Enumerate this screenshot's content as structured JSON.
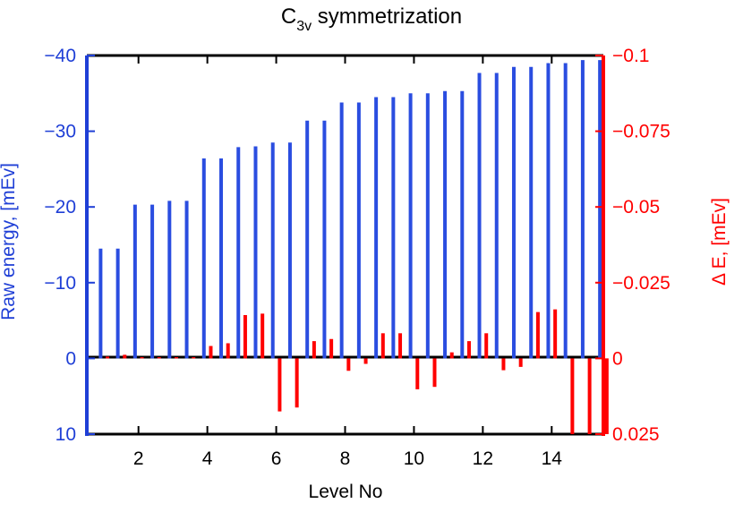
{
  "chart_data": {
    "type": "bar",
    "title": {
      "base": "C",
      "subscript": "3v",
      "rest": " symmetrization"
    },
    "xlabel": "Level No",
    "ylabel_left": "Raw energy, [mEv]",
    "ylabel_right": "Δ E, [mEv]",
    "xlim": [
      0.5,
      15.5
    ],
    "ylim_left": [
      10,
      -40
    ],
    "ylim_right": [
      0.025,
      -0.1
    ],
    "x_ticks": [
      2,
      4,
      6,
      8,
      10,
      12,
      14
    ],
    "x_tick_labels": [
      "2",
      "4",
      "6",
      "8",
      "10",
      "12",
      "14"
    ],
    "y_left_ticks": [
      -40,
      -30,
      -20,
      -10,
      0,
      10
    ],
    "y_left_tick_labels": [
      "−40",
      "−30",
      "−20",
      "−10",
      "0",
      "10"
    ],
    "y_right_ticks": [
      -0.1,
      -0.075,
      -0.05,
      -0.025,
      0,
      0.025
    ],
    "y_right_tick_labels": [
      "−0.1",
      "−0.075",
      "−0.05",
      "−0.025",
      "0",
      "0.025"
    ],
    "colors": {
      "left": "#1f3fd6",
      "right": "#ff0000"
    },
    "series": [
      {
        "name": "Raw energy",
        "axis": "left",
        "color": "#2a4de0",
        "x": [
          0.9,
          1.4,
          1.9,
          2.4,
          2.9,
          3.4,
          3.9,
          4.4,
          4.9,
          5.4,
          5.9,
          6.4,
          6.9,
          7.4,
          7.9,
          8.4,
          8.9,
          9.4,
          9.9,
          10.4,
          10.9,
          11.4,
          11.9,
          12.4,
          12.9,
          13.4,
          13.9,
          14.4,
          14.9,
          15.4
        ],
        "values": [
          -14.5,
          -14.5,
          -20.3,
          -20.3,
          -20.8,
          -20.8,
          -26.4,
          -26.4,
          -27.9,
          -28.0,
          -28.5,
          -28.5,
          -31.4,
          -31.4,
          -33.8,
          -33.8,
          -34.5,
          -34.5,
          -35.0,
          -35.0,
          -35.3,
          -35.3,
          -37.7,
          -37.7,
          -38.5,
          -38.5,
          -39.0,
          -39.0,
          -39.4,
          -39.4
        ]
      },
      {
        "name": "Δ E",
        "axis": "right",
        "color": "#ff0000",
        "x": [
          1.1,
          1.6,
          2.1,
          2.6,
          3.1,
          3.6,
          4.1,
          4.6,
          5.1,
          5.6,
          6.1,
          6.6,
          7.1,
          7.6,
          8.1,
          8.6,
          9.1,
          9.6,
          10.1,
          10.6,
          11.1,
          11.6,
          12.1,
          12.6,
          13.1,
          13.6,
          14.1,
          14.6,
          15.1,
          15.6
        ],
        "values": [
          -0.0006,
          -0.0012,
          -0.0004,
          -0.0004,
          -0.0004,
          -0.0004,
          -0.0041,
          -0.005,
          -0.0143,
          -0.0148,
          0.0175,
          0.0162,
          -0.0057,
          -0.0064,
          0.0041,
          0.0018,
          -0.0083,
          -0.0083,
          0.0102,
          0.0094,
          -0.002,
          -0.0057,
          -0.0083,
          0.0039,
          0.0028,
          -0.0153,
          -0.0162,
          0.025,
          0.025,
          0.025
        ]
      }
    ]
  }
}
